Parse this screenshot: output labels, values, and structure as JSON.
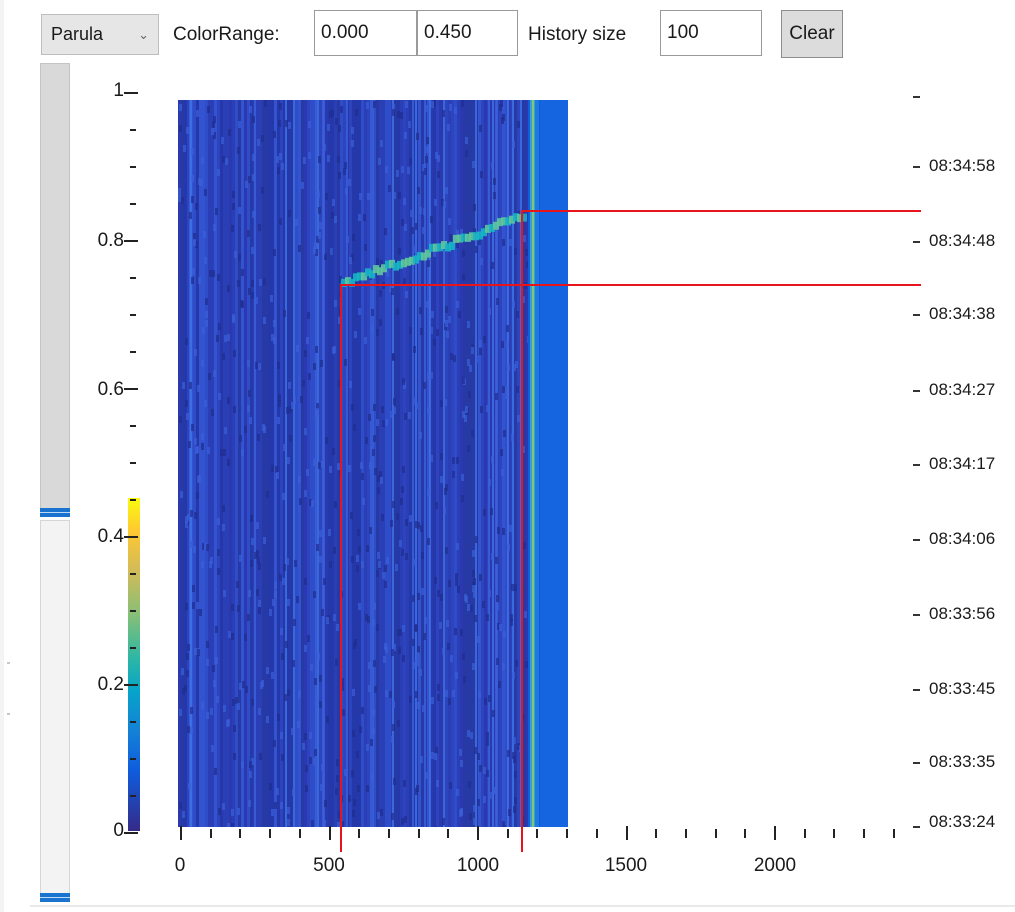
{
  "toolbar": {
    "colormap": "Parula",
    "color_range_label": "ColorRange:",
    "color_min": "0.000",
    "color_max": "0.450",
    "history_label": "History size",
    "history_value": "100",
    "clear_label": "Clear"
  },
  "plot": {
    "y_labels": [
      "1",
      "0.8",
      "0.6",
      "0.4",
      "0.2",
      "0"
    ],
    "x_labels": [
      "0",
      "500",
      "1000",
      "1500",
      "2000"
    ],
    "time_labels": [
      "08:34:58",
      "08:34:48",
      "08:34:38",
      "08:34:27",
      "08:34:17",
      "08:34:06",
      "08:33:56",
      "08:33:45",
      "08:33:35",
      "08:33:24"
    ],
    "colormap_colors": [
      "#352a87",
      "#0f5cdd",
      "#1481d6",
      "#06a4ca",
      "#2eb7a4",
      "#87bf77",
      "#d1bb59",
      "#fec832",
      "#f9fb0e"
    ],
    "cursor_color": "#e8141b"
  }
}
